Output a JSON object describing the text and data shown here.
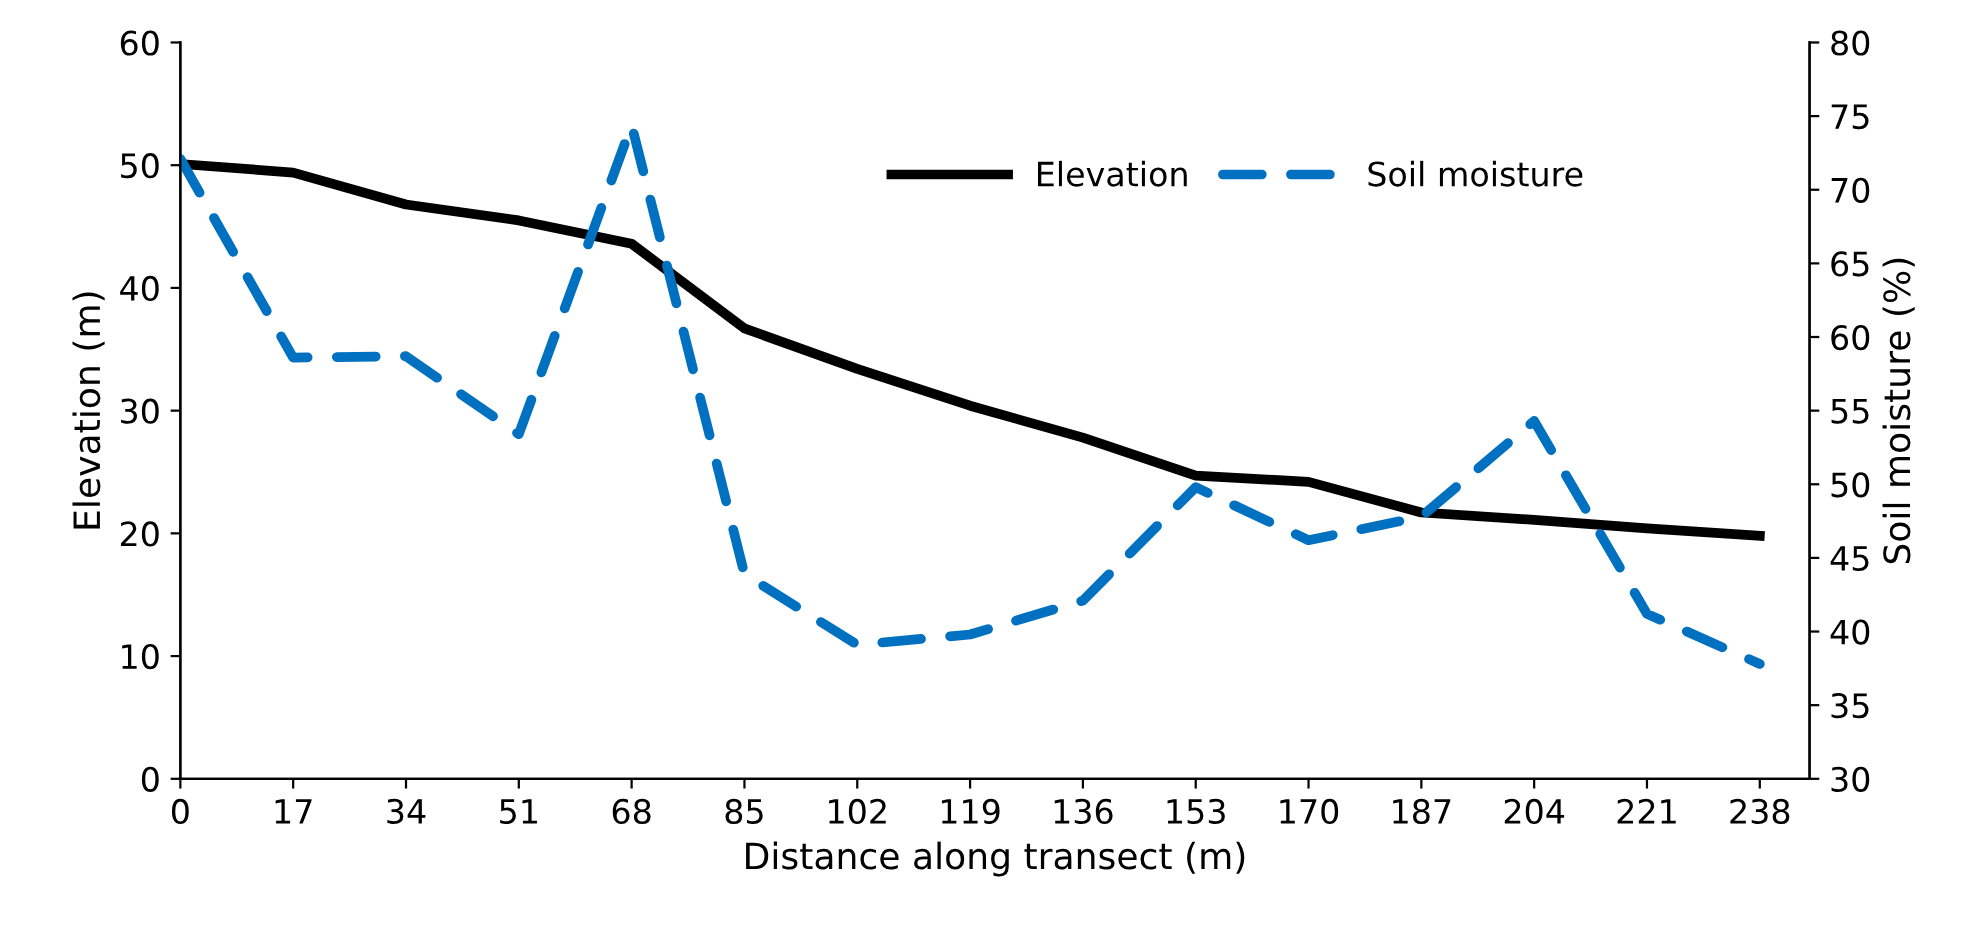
{
  "chart_data": {
    "type": "line",
    "xlabel": "Distance along transect (m)",
    "ylabel": "Elevation (m)",
    "y2label": "Soil moisture (%)",
    "x": [
      0,
      17,
      34,
      51,
      68,
      85,
      102,
      119,
      136,
      153,
      170,
      187,
      204,
      221,
      238
    ],
    "xlim": [
      0,
      245.5
    ],
    "xticks": [
      0,
      17,
      34,
      51,
      68,
      85,
      102,
      119,
      136,
      153,
      170,
      187,
      204,
      221,
      238
    ],
    "ylim": [
      0,
      60
    ],
    "yticks": [
      0,
      10,
      20,
      30,
      40,
      50,
      60
    ],
    "y2lim": [
      30,
      80
    ],
    "y2ticks": [
      30,
      35,
      40,
      45,
      50,
      55,
      60,
      65,
      70,
      75,
      80
    ],
    "series": [
      {
        "name": "Elevation",
        "color": "#000000",
        "line_style": "solid",
        "values": [
          50.1,
          49.4,
          46.8,
          45.5,
          43.6,
          36.7,
          33.4,
          30.4,
          27.8,
          24.7,
          24.2,
          21.7,
          21.1,
          20.4,
          19.8
        ]
      },
      {
        "name": "Soil moisture",
        "color": "#0070c0",
        "line_style": "dashed",
        "axis": "y2",
        "values": [
          72.1,
          58.6,
          58.7,
          53.4,
          74.4,
          43.9,
          39.1,
          39.8,
          42.1,
          49.8,
          46.2,
          47.8,
          54.3,
          41.2,
          37.8
        ]
      }
    ],
    "legend": "top right",
    "grid": false,
    "marker": "none"
  }
}
